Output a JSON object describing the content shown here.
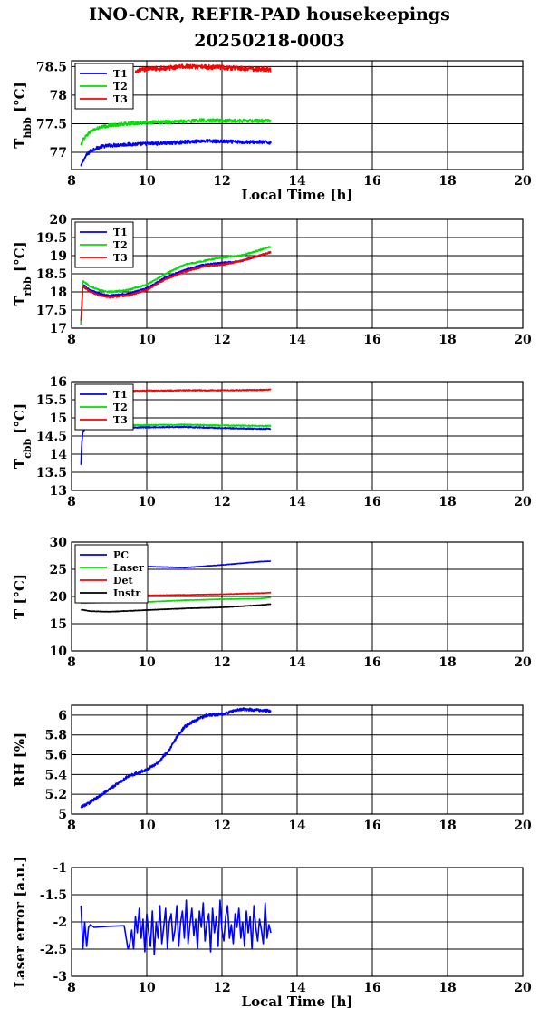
{
  "title_line1": "INO-CNR, REFIR-PAD housekeepings",
  "title_line2": "20250218-0003",
  "colors": {
    "blue": "#0000ff",
    "green": "#00e000",
    "red": "#ff0000",
    "black": "#000000"
  },
  "chart_data": [
    {
      "type": "line",
      "id": "hbb",
      "ylabel_main": "T",
      "ylabel_sub": "hbb",
      "ylabel_unit": " [°C]",
      "xlabel": "Local Time [h]",
      "xlim": [
        8,
        20
      ],
      "ylim": [
        76.7,
        78.6
      ],
      "xticks": [
        "8",
        "10",
        "12",
        "14",
        "16",
        "18",
        "20"
      ],
      "yticks": [
        {
          "v": 77,
          "label": "77"
        },
        {
          "v": 77.5,
          "label": "77.5"
        },
        {
          "v": 78,
          "label": "78"
        },
        {
          "v": 78.5,
          "label": "78.5"
        }
      ],
      "grid": true,
      "legend": "top-left",
      "series": [
        {
          "name": "T1",
          "color": "#0000ff",
          "noise": 0.03,
          "x": [
            8.25,
            8.3,
            8.4,
            8.5,
            8.6,
            8.8,
            9.0,
            9.5,
            10.0,
            10.5,
            11.0,
            11.5,
            12.0,
            12.5,
            13.0,
            13.3
          ],
          "y": [
            76.75,
            76.85,
            76.95,
            77.02,
            77.06,
            77.1,
            77.12,
            77.14,
            77.15,
            77.16,
            77.18,
            77.2,
            77.19,
            77.18,
            77.18,
            77.17
          ]
        },
        {
          "name": "T2",
          "color": "#00e000",
          "noise": 0.03,
          "x": [
            8.25,
            8.3,
            8.4,
            8.5,
            8.6,
            8.8,
            9.0,
            9.5,
            10.0,
            10.5,
            11.0,
            11.5,
            12.0,
            12.5,
            13.0,
            13.3
          ],
          "y": [
            77.12,
            77.22,
            77.3,
            77.36,
            77.4,
            77.44,
            77.47,
            77.5,
            77.52,
            77.53,
            77.54,
            77.56,
            77.55,
            77.55,
            77.55,
            77.55
          ]
        },
        {
          "name": "T3",
          "color": "#ff0000",
          "noise": 0.04,
          "x": [
            9.7,
            9.8,
            10.0,
            10.5,
            11.0,
            11.5,
            12.0,
            12.5,
            13.0,
            13.3
          ],
          "y": [
            78.38,
            78.43,
            78.46,
            78.47,
            78.5,
            78.49,
            78.48,
            78.47,
            78.45,
            78.45
          ]
        }
      ]
    },
    {
      "type": "line",
      "id": "rbb",
      "ylabel_main": "T",
      "ylabel_sub": "rbb",
      "ylabel_unit": " [°C]",
      "xlabel": "",
      "xlim": [
        8,
        20
      ],
      "ylim": [
        17,
        20
      ],
      "xticks": [
        "8",
        "10",
        "12",
        "14",
        "16",
        "18",
        "20"
      ],
      "yticks": [
        {
          "v": 17,
          "label": "17"
        },
        {
          "v": 17.5,
          "label": "17.5"
        },
        {
          "v": 18,
          "label": "18"
        },
        {
          "v": 18.5,
          "label": "18.5"
        },
        {
          "v": 19,
          "label": "19"
        },
        {
          "v": 19.5,
          "label": "19.5"
        },
        {
          "v": 20,
          "label": "20"
        }
      ],
      "grid": true,
      "legend": "top-left",
      "series": [
        {
          "name": "T1",
          "color": "#0000ff",
          "noise": 0.02,
          "x": [
            8.25,
            8.3,
            8.5,
            8.75,
            9.0,
            9.5,
            10.0,
            10.5,
            11.0,
            11.5,
            12.0,
            12.5,
            13.0,
            13.3
          ],
          "y": [
            17.1,
            18.2,
            18.05,
            17.95,
            17.9,
            17.95,
            18.1,
            18.4,
            18.6,
            18.75,
            18.8,
            18.85,
            19.0,
            19.1
          ]
        },
        {
          "name": "T2",
          "color": "#00e000",
          "noise": 0.02,
          "x": [
            8.25,
            8.3,
            8.5,
            8.75,
            9.0,
            9.5,
            10.0,
            10.5,
            11.0,
            11.5,
            12.0,
            12.5,
            13.0,
            13.3
          ],
          "y": [
            17.1,
            18.3,
            18.15,
            18.05,
            18.0,
            18.05,
            18.2,
            18.5,
            18.75,
            18.85,
            18.95,
            19.0,
            19.15,
            19.25
          ]
        },
        {
          "name": "T3",
          "color": "#ff0000",
          "noise": 0.02,
          "x": [
            8.25,
            8.3,
            8.5,
            8.75,
            9.0,
            9.5,
            10.0,
            10.5,
            11.0,
            11.5,
            12.0,
            12.5,
            13.0,
            13.3
          ],
          "y": [
            17.2,
            18.15,
            18.0,
            17.9,
            17.85,
            17.9,
            18.05,
            18.35,
            18.55,
            18.7,
            18.75,
            18.85,
            19.0,
            19.1
          ]
        }
      ]
    },
    {
      "type": "line",
      "id": "cbb",
      "ylabel_main": "T",
      "ylabel_sub": "cbb",
      "ylabel_unit": " [°C]",
      "xlabel": "",
      "xlim": [
        8,
        20
      ],
      "ylim": [
        13,
        16
      ],
      "xticks": [
        "8",
        "10",
        "12",
        "14",
        "16",
        "18",
        "20"
      ],
      "yticks": [
        {
          "v": 13,
          "label": "13"
        },
        {
          "v": 13.5,
          "label": "13.5"
        },
        {
          "v": 14,
          "label": "14"
        },
        {
          "v": 14.5,
          "label": "14.5"
        },
        {
          "v": 15,
          "label": "15"
        },
        {
          "v": 15.5,
          "label": "15.5"
        },
        {
          "v": 16,
          "label": "16"
        }
      ],
      "grid": true,
      "legend": "top-left",
      "series": [
        {
          "name": "T1",
          "color": "#0000ff",
          "noise": 0.015,
          "x": [
            8.25,
            8.27,
            8.3,
            8.35,
            8.5,
            9.0,
            10.0,
            11.0,
            12.0,
            13.0,
            13.3
          ],
          "y": [
            13.7,
            14.3,
            14.6,
            14.7,
            14.72,
            14.72,
            14.74,
            14.75,
            14.72,
            14.7,
            14.7
          ]
        },
        {
          "name": "T2",
          "color": "#00e000",
          "noise": 0.015,
          "x": [
            8.5,
            9.0,
            10.0,
            11.0,
            12.0,
            13.0,
            13.3
          ],
          "y": [
            14.8,
            14.8,
            14.8,
            14.81,
            14.79,
            14.78,
            14.78
          ]
        },
        {
          "name": "T3",
          "color": "#ff0000",
          "noise": 0.015,
          "x": [
            8.5,
            9.0,
            10.0,
            11.0,
            12.0,
            13.0,
            13.3
          ],
          "y": [
            15.73,
            15.74,
            15.75,
            15.76,
            15.76,
            15.77,
            15.78
          ]
        }
      ]
    },
    {
      "type": "line",
      "id": "temps",
      "ylabel_main": "T [°C]",
      "ylabel_sub": "",
      "ylabel_unit": "",
      "xlabel": "",
      "xlim": [
        8,
        20
      ],
      "ylim": [
        10,
        30
      ],
      "xticks": [
        "8",
        "10",
        "12",
        "14",
        "16",
        "18",
        "20"
      ],
      "yticks": [
        {
          "v": 10,
          "label": "10"
        },
        {
          "v": 15,
          "label": "15"
        },
        {
          "v": 20,
          "label": "20"
        },
        {
          "v": 25,
          "label": "25"
        },
        {
          "v": 30,
          "label": "30"
        }
      ],
      "grid": true,
      "legend": "top-left",
      "series": [
        {
          "name": "PC",
          "color": "#0000ff",
          "noise": 0.04,
          "x": [
            8.25,
            9.0,
            10.0,
            11.0,
            12.0,
            13.0,
            13.3
          ],
          "y": [
            25.3,
            25.4,
            25.5,
            25.3,
            25.8,
            26.4,
            26.5
          ]
        },
        {
          "name": "Laser",
          "color": "#00e000",
          "noise": 0.04,
          "x": [
            8.25,
            9.0,
            10.0,
            11.0,
            12.0,
            13.0,
            13.3
          ],
          "y": [
            18.8,
            18.9,
            19.0,
            19.3,
            19.5,
            19.6,
            19.8
          ]
        },
        {
          "name": "Det",
          "color": "#ff0000",
          "noise": 0.04,
          "x": [
            8.25,
            9.0,
            10.0,
            11.0,
            12.0,
            13.0,
            13.3
          ],
          "y": [
            20.0,
            20.1,
            20.2,
            20.3,
            20.4,
            20.6,
            20.7
          ]
        },
        {
          "name": "Instr",
          "color": "#000000",
          "noise": 0.04,
          "x": [
            8.25,
            8.5,
            9.0,
            10.0,
            11.0,
            12.0,
            13.0,
            13.3
          ],
          "y": [
            17.6,
            17.3,
            17.2,
            17.5,
            17.8,
            18.0,
            18.4,
            18.6
          ]
        }
      ]
    },
    {
      "type": "line",
      "id": "rh",
      "ylabel_main": "RH [%]",
      "ylabel_sub": "",
      "ylabel_unit": "",
      "xlabel": "",
      "xlim": [
        8,
        20
      ],
      "ylim": [
        5,
        6.1
      ],
      "xticks": [
        "8",
        "10",
        "12",
        "14",
        "16",
        "18",
        "20"
      ],
      "yticks": [
        {
          "v": 5,
          "label": "5"
        },
        {
          "v": 5.2,
          "label": "5.2"
        },
        {
          "v": 5.4,
          "label": "5.4"
        },
        {
          "v": 5.6,
          "label": "5.6"
        },
        {
          "v": 5.8,
          "label": "5.8"
        },
        {
          "v": 6,
          "label": "6"
        }
      ],
      "grid": true,
      "legend": "none",
      "series": [
        {
          "name": "",
          "color": "#0000ff",
          "noise": 0.015,
          "x": [
            8.25,
            8.5,
            9.0,
            9.5,
            10.0,
            10.3,
            10.6,
            10.8,
            11.0,
            11.3,
            11.6,
            12.0,
            12.5,
            13.0,
            13.3
          ],
          "y": [
            5.07,
            5.12,
            5.25,
            5.38,
            5.45,
            5.52,
            5.65,
            5.78,
            5.88,
            5.95,
            6.0,
            6.01,
            6.06,
            6.05,
            6.04
          ]
        }
      ]
    },
    {
      "type": "line",
      "id": "laser",
      "ylabel_main": "Laser error [a.u.]",
      "ylabel_sub": "",
      "ylabel_unit": "",
      "xlabel": "Local Time [h]",
      "xlim": [
        8,
        20
      ],
      "ylim": [
        -3,
        -1
      ],
      "xticks": [
        "8",
        "10",
        "12",
        "14",
        "16",
        "18",
        "20"
      ],
      "yticks": [
        {
          "v": -3,
          "label": "-3"
        },
        {
          "v": -2.5,
          "label": "-2.5"
        },
        {
          "v": -2,
          "label": "-2"
        },
        {
          "v": -1.5,
          "label": "-1.5"
        },
        {
          "v": -1,
          "label": "-1"
        }
      ],
      "grid": true,
      "legend": "none",
      "series": [
        {
          "name": "",
          "color": "#0000ff",
          "noise": 0,
          "x": [
            8.25,
            8.3,
            8.35,
            8.4,
            8.45,
            8.5,
            8.6,
            9.0,
            9.4,
            9.5,
            9.55,
            9.6,
            9.65,
            9.7,
            9.75,
            9.8,
            9.85,
            9.9,
            9.95,
            10.0,
            10.05,
            10.1,
            10.15,
            10.2,
            10.25,
            10.3,
            10.35,
            10.4,
            10.45,
            10.5,
            10.55,
            10.6,
            10.65,
            10.7,
            10.75,
            10.8,
            10.85,
            10.9,
            10.95,
            11.0,
            11.05,
            11.1,
            11.15,
            11.2,
            11.25,
            11.3,
            11.35,
            11.4,
            11.45,
            11.5,
            11.55,
            11.6,
            11.65,
            11.7,
            11.75,
            11.8,
            11.85,
            11.9,
            11.95,
            12.0,
            12.05,
            12.1,
            12.15,
            12.2,
            12.25,
            12.3,
            12.35,
            12.4,
            12.45,
            12.5,
            12.55,
            12.6,
            12.65,
            12.7,
            12.75,
            12.8,
            12.85,
            12.9,
            12.95,
            13.0,
            13.05,
            13.1,
            13.15,
            13.2,
            13.25,
            13.3
          ],
          "y": [
            -1.7,
            -2.5,
            -2.0,
            -2.45,
            -2.1,
            -2.05,
            -2.1,
            -2.08,
            -2.07,
            -2.5,
            -2.4,
            -2.15,
            -2.5,
            -1.9,
            -2.2,
            -1.75,
            -2.3,
            -1.95,
            -2.55,
            -1.85,
            -2.2,
            -2.45,
            -1.8,
            -2.6,
            -2.0,
            -2.3,
            -1.7,
            -2.4,
            -2.1,
            -1.75,
            -2.5,
            -2.0,
            -1.85,
            -2.35,
            -2.15,
            -1.7,
            -2.45,
            -2.0,
            -1.8,
            -2.3,
            -1.6,
            -2.4,
            -2.05,
            -1.75,
            -2.25,
            -1.95,
            -2.5,
            -1.8,
            -2.1,
            -1.65,
            -2.35,
            -2.0,
            -1.85,
            -2.55,
            -1.75,
            -2.2,
            -1.9,
            -2.45,
            -1.6,
            -2.15,
            -2.35,
            -1.9,
            -1.7,
            -2.3,
            -2.05,
            -2.4,
            -1.85,
            -2.1,
            -1.75,
            -2.3,
            -2.0,
            -2.45,
            -1.8,
            -2.2,
            -1.9,
            -2.5,
            -1.7,
            -2.1,
            -2.35,
            -1.95,
            -2.15,
            -2.4,
            -1.65,
            -2.3,
            -2.05,
            -2.2
          ]
        }
      ]
    }
  ]
}
